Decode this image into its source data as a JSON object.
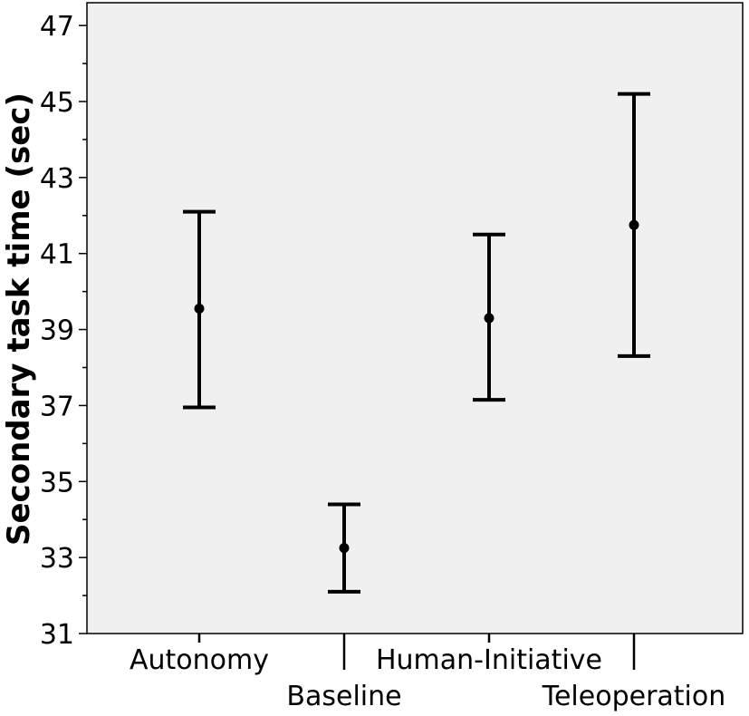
{
  "chart_data": {
    "type": "errorbar",
    "title": "",
    "xlabel": "",
    "ylabel": "Secondary task time (sec)",
    "ylim": [
      31,
      47.6
    ],
    "yticks": [
      31,
      33,
      35,
      37,
      39,
      41,
      43,
      45,
      47
    ],
    "yticks_minor": [
      32,
      34,
      36,
      38,
      40,
      42,
      44,
      46
    ],
    "grid": false,
    "categories": [
      "Autonomy",
      "Baseline",
      "Human-Initiative",
      "Teleoperation"
    ],
    "means": [
      39.55,
      33.25,
      39.3,
      41.75
    ],
    "lower": [
      36.95,
      32.1,
      37.15,
      38.3
    ],
    "upper": [
      42.1,
      34.4,
      41.5,
      45.2
    ]
  },
  "colors": {
    "plot_background": "#f0f0f0",
    "marks": "#000000"
  }
}
